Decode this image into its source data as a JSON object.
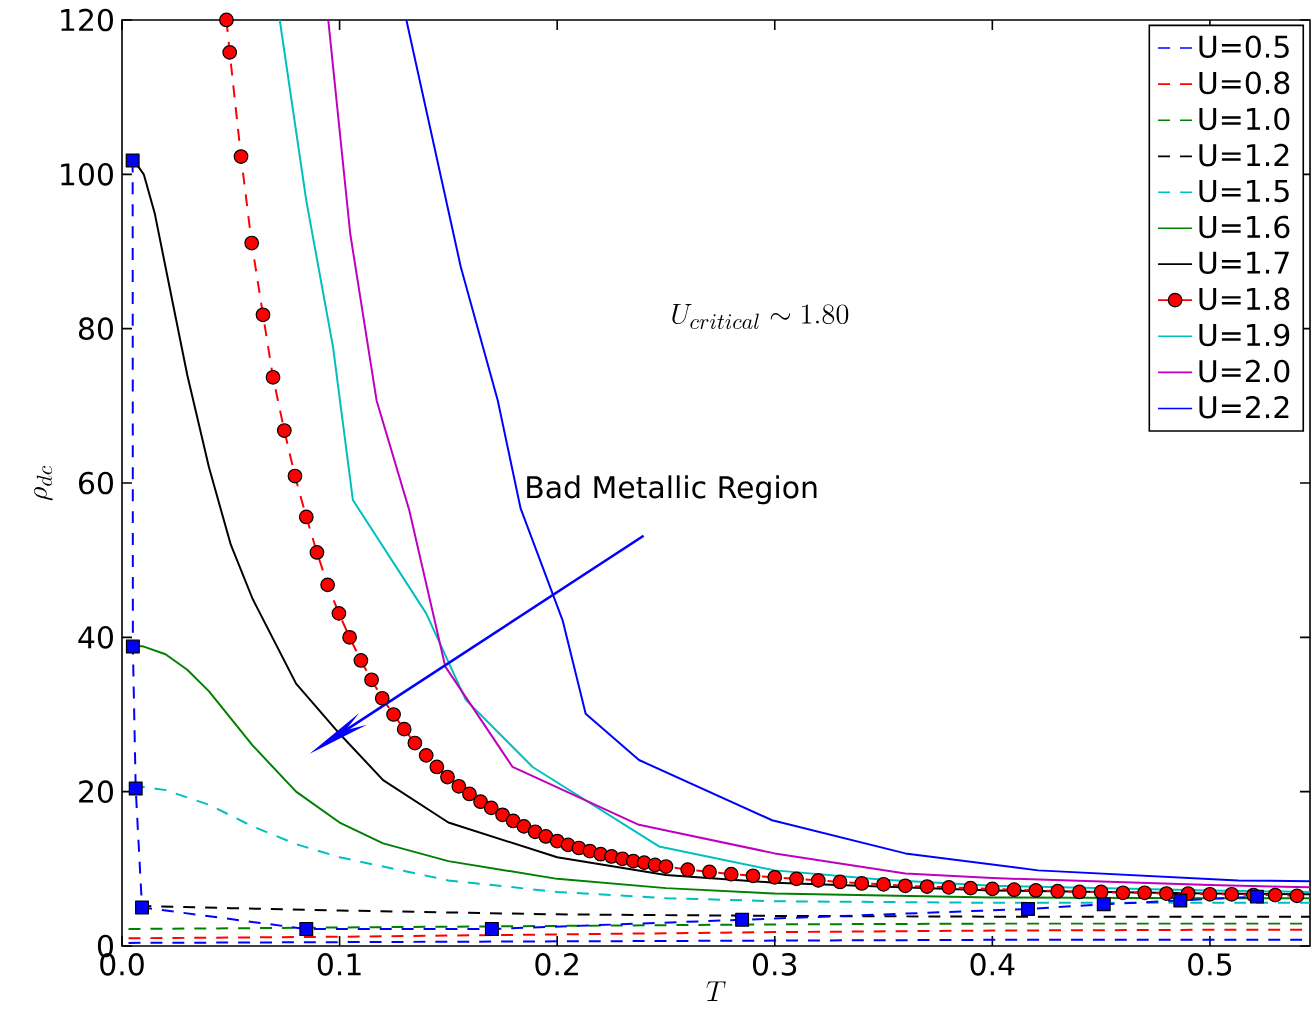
{
  "chart_data": {
    "type": "line",
    "xlabel": "T",
    "ylabel": "\\rho_{dc}",
    "xlim": [
      0,
      0.546
    ],
    "ylim": [
      0,
      120
    ],
    "xticks": [
      {
        "value": 0,
        "label": "0.0"
      },
      {
        "value": 0.1,
        "label": "0.1"
      },
      {
        "value": 0.2,
        "label": "0.2"
      },
      {
        "value": 0.3,
        "label": "0.3"
      },
      {
        "value": 0.4,
        "label": "0.4"
      },
      {
        "value": 0.5,
        "label": "0.5"
      }
    ],
    "yticks": [
      0,
      20,
      40,
      60,
      80,
      100,
      120
    ],
    "legend": "top right",
    "annotations": [
      {
        "text": "Bad Metallic Region",
        "x": 0.1,
        "y": 27.5
      },
      "U_{critical}\\sim 1.80"
    ],
    "series": [
      {
        "name": "U=0.5",
        "color": "#0000ff",
        "line_style": "dashed",
        "marker": "none",
        "x": [
          0.003,
          0.1,
          0.2,
          0.3,
          0.4,
          0.5,
          0.546
        ],
        "values": [
          0.4,
          0.5,
          0.6,
          0.7,
          0.8,
          0.8,
          0.8
        ]
      },
      {
        "name": "U=0.8",
        "color": "#ff0000",
        "line_style": "dashed",
        "marker": "none",
        "x": [
          0.003,
          0.1,
          0.2,
          0.3,
          0.4,
          0.5,
          0.546
        ],
        "values": [
          1.0,
          1.2,
          1.5,
          1.8,
          2.0,
          2.1,
          2.1
        ]
      },
      {
        "name": "U=1.0",
        "color": "#008000",
        "line_style": "dashed",
        "marker": "none",
        "x": [
          0.003,
          0.1,
          0.2,
          0.3,
          0.4,
          0.5,
          0.546
        ],
        "values": [
          2.2,
          2.4,
          2.6,
          2.8,
          2.9,
          2.9,
          2.9
        ]
      },
      {
        "name": "U=1.2",
        "color": "#000000",
        "line_style": "dashed",
        "marker": "none",
        "x": [
          0.008,
          0.05,
          0.1,
          0.2,
          0.3,
          0.4,
          0.5,
          0.546
        ],
        "values": [
          5.2,
          4.9,
          4.6,
          4.1,
          3.9,
          3.8,
          3.8,
          3.8
        ]
      },
      {
        "name": "U=1.5",
        "color": "#00bfbf",
        "line_style": "dashed",
        "marker": "none",
        "x": [
          0.005,
          0.02,
          0.04,
          0.06,
          0.08,
          0.1,
          0.15,
          0.2,
          0.25,
          0.3,
          0.4,
          0.5,
          0.546
        ],
        "values": [
          20.8,
          20.2,
          18.3,
          15.5,
          13.2,
          11.5,
          8.5,
          7.0,
          6.2,
          5.8,
          5.6,
          5.6,
          5.6
        ]
      },
      {
        "name": "U=1.6",
        "color": "#008000",
        "line_style": "solid",
        "marker": "none",
        "x": [
          0.003,
          0.01,
          0.02,
          0.03,
          0.04,
          0.05,
          0.06,
          0.08,
          0.1,
          0.12,
          0.15,
          0.2,
          0.25,
          0.3,
          0.4,
          0.5,
          0.546
        ],
        "values": [
          39,
          38.8,
          37.8,
          35.8,
          33,
          29.5,
          26,
          20,
          16,
          13.3,
          11,
          8.7,
          7.5,
          6.8,
          6.3,
          6.2,
          6.2
        ]
      },
      {
        "name": "U=1.7",
        "color": "#000000",
        "line_style": "solid",
        "marker": "none",
        "x": [
          0.005,
          0.01,
          0.015,
          0.02,
          0.03,
          0.04,
          0.05,
          0.06,
          0.08,
          0.1,
          0.12,
          0.15,
          0.2,
          0.25,
          0.3,
          0.4,
          0.5,
          0.546
        ],
        "values": [
          102,
          100,
          95,
          88,
          74,
          62,
          52,
          45,
          34,
          27.5,
          21.5,
          16,
          11.5,
          9.2,
          8.2,
          7.2,
          6.8,
          6.7
        ]
      },
      {
        "name": "U=1.8",
        "color": "#ff0000",
        "line_style": "dashed",
        "marker": "circle",
        "x": [
          0.048,
          0.0495,
          0.0547,
          0.0596,
          0.0648,
          0.0694,
          0.0746,
          0.0795,
          0.0847,
          0.0896,
          0.0945,
          0.0997,
          0.1046,
          0.1098,
          0.1147,
          0.1196,
          0.1248,
          0.1297,
          0.1346,
          0.1398,
          0.1447,
          0.1496,
          0.1548,
          0.1597,
          0.1648,
          0.1697,
          0.1749,
          0.1798,
          0.1847,
          0.1899,
          0.1948,
          0.2,
          0.205,
          0.21,
          0.215,
          0.22,
          0.225,
          0.23,
          0.235,
          0.24,
          0.245,
          0.25,
          0.26,
          0.27,
          0.28,
          0.29,
          0.3,
          0.31,
          0.32,
          0.33,
          0.34,
          0.35,
          0.36,
          0.37,
          0.38,
          0.39,
          0.4,
          0.41,
          0.42,
          0.43,
          0.44,
          0.45,
          0.46,
          0.47,
          0.48,
          0.49,
          0.5,
          0.51,
          0.52,
          0.53,
          0.54
        ],
        "values": [
          120,
          115.8,
          102.3,
          91.1,
          81.8,
          73.7,
          66.8,
          60.9,
          55.6,
          51.0,
          46.8,
          43.1,
          40.0,
          37.0,
          34.5,
          32.1,
          30.0,
          28.1,
          26.3,
          24.7,
          23.2,
          21.9,
          20.7,
          19.7,
          18.7,
          17.9,
          17.0,
          16.2,
          15.5,
          14.8,
          14.2,
          13.6,
          13.1,
          12.7,
          12.3,
          11.9,
          11.6,
          11.3,
          11.0,
          10.8,
          10.5,
          10.3,
          9.9,
          9.6,
          9.3,
          9.1,
          8.9,
          8.7,
          8.5,
          8.3,
          8.1,
          8.0,
          7.8,
          7.7,
          7.6,
          7.5,
          7.4,
          7.3,
          7.2,
          7.1,
          7.0,
          7.0,
          6.9,
          6.9,
          6.8,
          6.8,
          6.7,
          6.7,
          6.6,
          6.6,
          6.5
        ]
      },
      {
        "name": "U=1.9",
        "color": "#00bfbf",
        "line_style": "solid",
        "marker": "none",
        "x": [
          0.0725,
          0.0847,
          0.097,
          0.1061,
          0.1398,
          0.158,
          0.1887,
          0.2468,
          0.3,
          0.35,
          0.4,
          0.5,
          0.546
        ],
        "values": [
          120,
          96.6,
          77.6,
          57.8,
          43.1,
          31.9,
          23.2,
          12.9,
          9.8,
          8.6,
          7.8,
          7.2,
          7.0
        ]
      },
      {
        "name": "U=2.0",
        "color": "#bf00bf",
        "line_style": "solid",
        "marker": "none",
        "x": [
          0.0948,
          0.1049,
          0.117,
          0.132,
          0.1486,
          0.1795,
          0.2376,
          0.3,
          0.36,
          0.4,
          0.5,
          0.546
        ],
        "values": [
          120,
          92.3,
          70.7,
          56.5,
          36.2,
          23.2,
          15.7,
          12.0,
          9.4,
          8.8,
          7.9,
          7.6
        ]
      },
      {
        "name": "U=2.2",
        "color": "#0000ff",
        "line_style": "solid",
        "marker": "none",
        "x": [
          0.1307,
          0.1557,
          0.1727,
          0.1832,
          0.2025,
          0.2131,
          0.2376,
          0.2988,
          0.36,
          0.421,
          0.513,
          0.546
        ],
        "values": [
          120,
          88.0,
          70.7,
          56.7,
          42.2,
          30.1,
          24.1,
          16.3,
          12.0,
          9.8,
          8.5,
          8.4
        ]
      },
      {
        "color": "#0000ff",
        "line_style": "dashed",
        "marker": "square",
        "x": [
          0.0049,
          0.005,
          0.0063,
          0.0092,
          0.0847,
          0.17,
          0.285,
          0.4164,
          0.4512,
          0.4864,
          0.5216
        ],
        "values": [
          101.8,
          38.8,
          20.4,
          5.0,
          2.2,
          2.2,
          3.4,
          4.8,
          5.4,
          5.9,
          6.4
        ]
      }
    ]
  }
}
